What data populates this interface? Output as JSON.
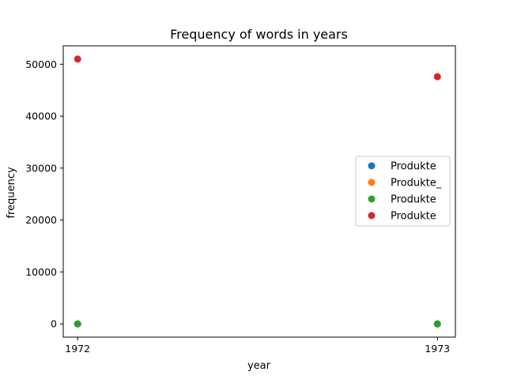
{
  "chart_data": {
    "type": "scatter",
    "title": "Frequency of words in years",
    "xlabel": "year",
    "ylabel": "frequency",
    "x_ticks": [
      "1972",
      "1973"
    ],
    "y_ticks": [
      "0",
      "10000",
      "20000",
      "30000",
      "40000",
      "50000"
    ],
    "xlim": [
      1971.96,
      1973.05
    ],
    "ylim": [
      -2550,
      53550
    ],
    "grid": false,
    "legend_position": "center-right",
    "series": [
      {
        "name": "Produkte",
        "color": "#1f77b4",
        "points": [
          [
            1972,
            0
          ],
          [
            1973,
            0
          ]
        ]
      },
      {
        "name": "Produkte_",
        "color": "#ff7f0e",
        "points": [
          [
            1972,
            0
          ],
          [
            1973,
            0
          ]
        ]
      },
      {
        "name": "Produkte",
        "color": "#2ca02c",
        "points": [
          [
            1972,
            0
          ],
          [
            1973,
            0
          ]
        ]
      },
      {
        "name": "Produkte",
        "color": "#d62728",
        "points": [
          [
            1972,
            51000
          ],
          [
            1973,
            47600
          ]
        ]
      }
    ]
  }
}
